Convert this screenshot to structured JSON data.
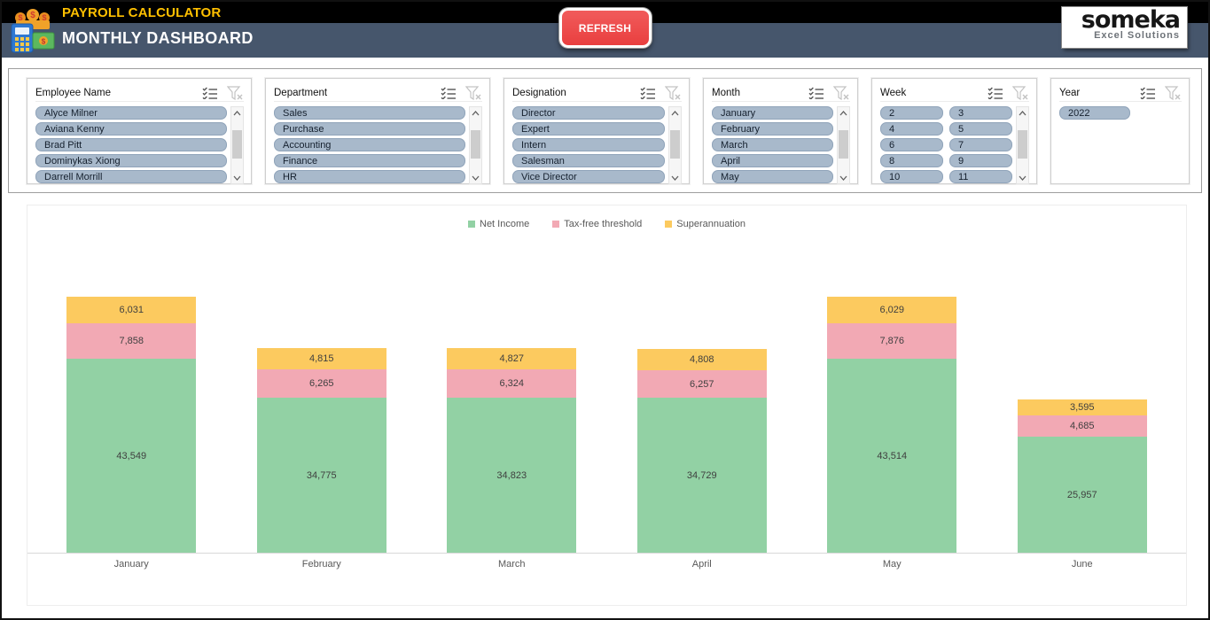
{
  "header": {
    "app_title": "PAYROLL CALCULATOR",
    "page_title": "MONTHLY DASHBOARD",
    "refresh_label": "REFRESH",
    "logo_brand": "someka",
    "logo_tagline": "Excel Solutions"
  },
  "colors": {
    "header_bar_top": "#000000",
    "header_bar_bottom": "#46566c",
    "app_title_accent": "#ffc000",
    "refresh_red": "#ec4545",
    "slicer_pill": "#a8b9cb",
    "net_income_green": "#92d1a4",
    "tax_free_pink": "#f2a9b4",
    "superannuation_yellow": "#fcca5f"
  },
  "slicers": [
    {
      "title": "Employee Name",
      "columns": 1,
      "scrollbar": true,
      "items": [
        "Alyce Milner",
        "Aviana Kenny",
        "Brad Pitt",
        "Dominykas Xiong",
        "Darrell Morrill"
      ]
    },
    {
      "title": "Department",
      "columns": 1,
      "scrollbar": true,
      "items": [
        "Sales",
        "Purchase",
        "Accounting",
        "Finance",
        "HR"
      ]
    },
    {
      "title": "Designation",
      "columns": 1,
      "scrollbar": true,
      "items": [
        "Director",
        "Expert",
        "Intern",
        "Salesman",
        "Vice Director"
      ]
    },
    {
      "title": "Month",
      "columns": 1,
      "scrollbar": true,
      "items": [
        "January",
        "February",
        "March",
        "April",
        "May"
      ]
    },
    {
      "title": "Week",
      "columns": 2,
      "scrollbar": true,
      "items": [
        "2",
        "3",
        "4",
        "5",
        "6",
        "7",
        "8",
        "9",
        "10",
        "11"
      ]
    },
    {
      "title": "Year",
      "columns": 1,
      "scrollbar": false,
      "items": [
        "2022"
      ]
    }
  ],
  "slicer_icons": [
    "multi-select-icon",
    "clear-filter-icon"
  ],
  "chart_data": {
    "type": "bar",
    "stacked": true,
    "title": "",
    "categories": [
      "January",
      "February",
      "March",
      "April",
      "May",
      "June"
    ],
    "series": [
      {
        "name": "Net Income",
        "color": "#92d1a4",
        "values": [
          43549,
          34775,
          34823,
          34729,
          43514,
          25957
        ]
      },
      {
        "name": "Tax-free threshold",
        "color": "#f2a9b4",
        "values": [
          7858,
          6265,
          6324,
          6257,
          7876,
          4685
        ]
      },
      {
        "name": "Superannuation",
        "color": "#fcca5f",
        "values": [
          6031,
          4815,
          4827,
          4808,
          6029,
          3595
        ]
      }
    ],
    "value_labels": "inside segments, thousands separators",
    "legend_position": "top-center",
    "ylim": [
      0,
      70000
    ],
    "grid": false
  }
}
